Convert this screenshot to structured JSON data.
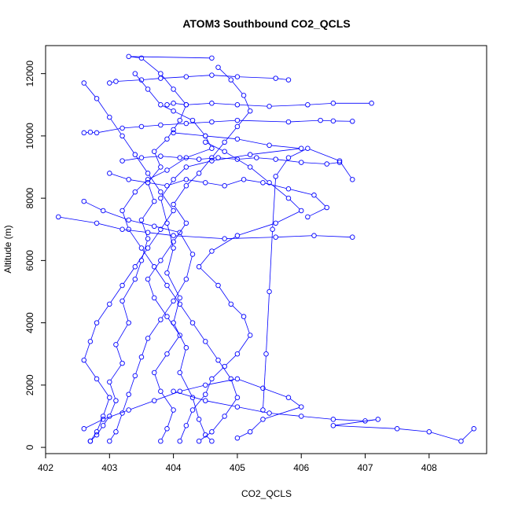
{
  "chart_data": {
    "type": "scatter",
    "title": "ATOM3 Southbound CO2_QCLS",
    "xlabel": "CO2_QCLS",
    "ylabel": "Altitude (m)",
    "xlim": [
      402.0,
      408.9
    ],
    "ylim": [
      -200,
      12900
    ],
    "xticks": [
      402,
      403,
      404,
      405,
      406,
      407,
      408
    ],
    "yticks": [
      0,
      2000,
      4000,
      6000,
      8000,
      10000,
      12000
    ],
    "grid": false,
    "legend": "none",
    "series_color": "#0000ff",
    "marker": "open-circle",
    "connected": true,
    "series": [
      {
        "points": [
          [
            402.7,
            200
          ],
          [
            402.8,
            400
          ],
          [
            402.9,
            700
          ],
          [
            403.0,
            1000
          ],
          [
            403.1,
            1500
          ],
          [
            403.0,
            2100
          ],
          [
            403.2,
            2700
          ],
          [
            403.1,
            3300
          ],
          [
            403.3,
            4000
          ],
          [
            403.2,
            4700
          ],
          [
            403.4,
            5400
          ],
          [
            403.5,
            6000
          ],
          [
            403.6,
            6700
          ],
          [
            403.5,
            7300
          ],
          [
            403.7,
            7900
          ],
          [
            403.6,
            8500
          ],
          [
            403.8,
            9000
          ],
          [
            403.7,
            9500
          ],
          [
            403.9,
            9900
          ],
          [
            404.0,
            10200
          ],
          [
            404.1,
            10500
          ],
          [
            404.2,
            11000
          ],
          [
            404.0,
            11500
          ],
          [
            403.8,
            12000
          ],
          [
            403.5,
            12500
          ],
          [
            403.3,
            12550
          ],
          [
            404.6,
            12500
          ]
        ]
      },
      {
        "points": [
          [
            404.0,
            10100
          ],
          [
            404.5,
            10000
          ],
          [
            405.0,
            9900
          ],
          [
            405.5,
            9700
          ],
          [
            406.0,
            9600
          ],
          [
            405.2,
            9400
          ],
          [
            404.6,
            9200
          ],
          [
            404.2,
            9000
          ],
          [
            404.0,
            8600
          ],
          [
            403.8,
            8000
          ],
          [
            403.9,
            7200
          ],
          [
            404.0,
            6400
          ],
          [
            403.9,
            5600
          ],
          [
            404.1,
            4800
          ],
          [
            404.0,
            4000
          ],
          [
            404.2,
            3200
          ],
          [
            404.1,
            2400
          ],
          [
            404.3,
            1600
          ],
          [
            404.4,
            900
          ],
          [
            404.5,
            400
          ],
          [
            404.6,
            200
          ]
        ]
      },
      {
        "points": [
          [
            402.6,
            10100
          ],
          [
            402.7,
            10120
          ],
          [
            402.8,
            10100
          ],
          [
            403.2,
            10250
          ],
          [
            403.5,
            10300
          ],
          [
            403.8,
            10350
          ],
          [
            404.2,
            10400
          ],
          [
            404.6,
            10450
          ],
          [
            405.0,
            10500
          ],
          [
            405.8,
            10450
          ],
          [
            406.3,
            10500
          ],
          [
            406.5,
            10480
          ],
          [
            406.8,
            10470
          ]
        ]
      },
      {
        "points": [
          [
            404.0,
            1800
          ],
          [
            404.5,
            1500
          ],
          [
            405.0,
            1300
          ],
          [
            405.5,
            1100
          ],
          [
            406.0,
            1000
          ],
          [
            406.5,
            900
          ],
          [
            407.0,
            850
          ],
          [
            407.2,
            900
          ],
          [
            406.5,
            700
          ],
          [
            407.5,
            600
          ],
          [
            408.0,
            500
          ],
          [
            408.5,
            200
          ],
          [
            408.7,
            600
          ]
        ]
      },
      {
        "points": [
          [
            402.2,
            7400
          ],
          [
            402.8,
            7200
          ],
          [
            403.2,
            7000
          ],
          [
            403.6,
            6900
          ],
          [
            404.0,
            6800
          ],
          [
            404.8,
            6700
          ],
          [
            405.6,
            6750
          ],
          [
            406.2,
            6800
          ],
          [
            406.8,
            6750
          ]
        ]
      },
      {
        "points": [
          [
            403.0,
            11700
          ],
          [
            403.1,
            11750
          ],
          [
            403.5,
            11800
          ],
          [
            403.8,
            11850
          ],
          [
            404.2,
            11900
          ],
          [
            404.6,
            11950
          ],
          [
            405.0,
            11900
          ],
          [
            405.6,
            11850
          ],
          [
            405.8,
            11800
          ]
        ]
      },
      {
        "points": [
          [
            403.9,
            11000
          ],
          [
            404.0,
            11050
          ],
          [
            404.2,
            11000
          ],
          [
            404.6,
            11050
          ],
          [
            405.0,
            11000
          ],
          [
            405.5,
            10950
          ],
          [
            406.1,
            11000
          ],
          [
            406.5,
            11050
          ],
          [
            407.1,
            11050
          ]
        ]
      },
      {
        "points": [
          [
            405.4,
            1200
          ],
          [
            405.45,
            3000
          ],
          [
            405.5,
            5000
          ],
          [
            405.55,
            7000
          ],
          [
            405.6,
            8700
          ],
          [
            405.8,
            9300
          ],
          [
            406.1,
            9600
          ],
          [
            406.6,
            9200
          ],
          [
            406.8,
            8600
          ]
        ]
      },
      {
        "points": [
          [
            402.6,
            7900
          ],
          [
            402.9,
            7600
          ],
          [
            403.3,
            7300
          ],
          [
            403.7,
            7100
          ],
          [
            404.1,
            6900
          ],
          [
            404.3,
            6200
          ],
          [
            404.2,
            5400
          ],
          [
            404.0,
            4700
          ],
          [
            403.8,
            4100
          ],
          [
            403.6,
            3500
          ],
          [
            403.5,
            2900
          ],
          [
            403.4,
            2300
          ],
          [
            403.3,
            1700
          ],
          [
            403.2,
            1100
          ],
          [
            403.1,
            500
          ],
          [
            403.0,
            200
          ]
        ]
      },
      {
        "points": [
          [
            404.5,
            9800
          ],
          [
            404.8,
            9500
          ],
          [
            405.2,
            9000
          ],
          [
            405.5,
            8500
          ],
          [
            405.8,
            8000
          ],
          [
            406.0,
            7600
          ],
          [
            405.6,
            7200
          ],
          [
            405.0,
            6800
          ],
          [
            404.6,
            6300
          ],
          [
            404.4,
            5800
          ],
          [
            404.7,
            5200
          ],
          [
            404.9,
            4600
          ],
          [
            405.1,
            4200
          ],
          [
            405.2,
            3600
          ],
          [
            405.0,
            3000
          ],
          [
            404.8,
            2600
          ],
          [
            404.6,
            2200
          ],
          [
            404.5,
            1700
          ],
          [
            404.3,
            1200
          ],
          [
            404.2,
            700
          ],
          [
            404.1,
            200
          ]
        ]
      },
      {
        "points": [
          [
            403.4,
            12000
          ],
          [
            403.6,
            11500
          ],
          [
            403.8,
            11000
          ],
          [
            404.0,
            10800
          ],
          [
            404.3,
            10500
          ],
          [
            404.5,
            10000
          ],
          [
            404.6,
            9600
          ],
          [
            404.2,
            9300
          ],
          [
            403.9,
            8900
          ],
          [
            403.6,
            8600
          ],
          [
            403.4,
            8200
          ],
          [
            403.2,
            7600
          ],
          [
            403.3,
            7000
          ],
          [
            403.5,
            6400
          ],
          [
            403.7,
            5800
          ],
          [
            403.9,
            5200
          ],
          [
            404.1,
            4600
          ],
          [
            404.3,
            4000
          ],
          [
            404.5,
            3400
          ],
          [
            404.7,
            2800
          ],
          [
            404.9,
            2200
          ],
          [
            405.0,
            1600
          ],
          [
            404.8,
            1000
          ],
          [
            404.6,
            500
          ],
          [
            404.4,
            200
          ]
        ]
      },
      {
        "points": [
          [
            402.6,
            11700
          ],
          [
            402.8,
            11200
          ],
          [
            403.0,
            10600
          ],
          [
            403.2,
            10000
          ],
          [
            403.4,
            9400
          ],
          [
            403.6,
            8800
          ],
          [
            403.8,
            8200
          ],
          [
            404.0,
            7600
          ],
          [
            403.8,
            7000
          ],
          [
            403.6,
            6400
          ],
          [
            403.4,
            5800
          ],
          [
            403.2,
            5200
          ],
          [
            403.0,
            4600
          ],
          [
            402.8,
            4000
          ],
          [
            402.7,
            3400
          ],
          [
            402.6,
            2800
          ],
          [
            402.8,
            2200
          ],
          [
            403.0,
            1600
          ],
          [
            402.9,
            1000
          ],
          [
            402.8,
            500
          ],
          [
            402.7,
            200
          ]
        ]
      },
      {
        "points": [
          [
            403.2,
            9200
          ],
          [
            403.5,
            9300
          ],
          [
            403.8,
            9350
          ],
          [
            404.1,
            9300
          ],
          [
            404.4,
            9250
          ],
          [
            404.7,
            9300
          ],
          [
            405.0,
            9250
          ],
          [
            405.3,
            9300
          ],
          [
            405.6,
            9250
          ],
          [
            406.0,
            9150
          ],
          [
            406.4,
            9100
          ],
          [
            406.6,
            9150
          ]
        ]
      },
      {
        "points": [
          [
            403.8,
            200
          ],
          [
            403.9,
            600
          ],
          [
            404.0,
            1200
          ],
          [
            403.8,
            1800
          ],
          [
            403.7,
            2400
          ],
          [
            403.9,
            3000
          ],
          [
            404.1,
            3600
          ],
          [
            403.9,
            4200
          ],
          [
            403.7,
            4800
          ],
          [
            403.6,
            5400
          ],
          [
            403.8,
            6000
          ],
          [
            404.0,
            6600
          ],
          [
            404.2,
            7200
          ],
          [
            404.0,
            7800
          ],
          [
            404.2,
            8400
          ],
          [
            404.4,
            8800
          ],
          [
            404.6,
            9300
          ],
          [
            404.8,
            9800
          ],
          [
            405.0,
            10300
          ],
          [
            405.2,
            10800
          ],
          [
            405.1,
            11300
          ],
          [
            404.9,
            11800
          ],
          [
            404.7,
            12200
          ]
        ]
      },
      {
        "points": [
          [
            403.0,
            8800
          ],
          [
            403.3,
            8600
          ],
          [
            403.6,
            8500
          ],
          [
            403.9,
            8400
          ],
          [
            404.2,
            8600
          ],
          [
            404.5,
            8500
          ],
          [
            404.8,
            8400
          ],
          [
            405.1,
            8600
          ],
          [
            405.4,
            8500
          ],
          [
            405.8,
            8300
          ],
          [
            406.2,
            8100
          ],
          [
            406.4,
            7700
          ],
          [
            406.1,
            7400
          ]
        ]
      },
      {
        "points": [
          [
            402.6,
            600
          ],
          [
            402.9,
            900
          ],
          [
            403.3,
            1200
          ],
          [
            403.7,
            1500
          ],
          [
            404.1,
            1800
          ],
          [
            404.5,
            2000
          ],
          [
            405.0,
            2200
          ],
          [
            405.4,
            1900
          ],
          [
            405.8,
            1600
          ],
          [
            406.0,
            1300
          ],
          [
            405.4,
            900
          ],
          [
            405.2,
            500
          ],
          [
            405.0,
            300
          ]
        ]
      }
    ]
  }
}
